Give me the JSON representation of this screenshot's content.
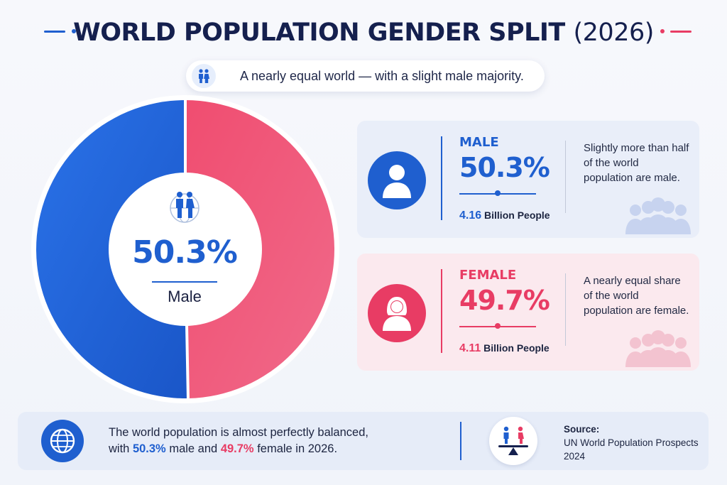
{
  "header": {
    "title": "WORLD POPULATION GENDER SPLIT",
    "year": "(2026)",
    "subtitle": "A nearly equal world — with a slight male majority."
  },
  "colors": {
    "male": "#1f5fcf",
    "female": "#e83c64",
    "navy": "#15204e"
  },
  "chart_data": {
    "type": "pie",
    "categories": [
      "Male",
      "Female"
    ],
    "values": [
      50.3,
      49.7
    ],
    "unit": "%",
    "center_value": "50.3%",
    "center_label": "Male",
    "colors": [
      "#1f5fcf",
      "#e83c64"
    ]
  },
  "cards": {
    "male": {
      "label": "MALE",
      "percent": "50.3%",
      "people_num": "4.16",
      "people_text": "Billion People",
      "description": "Slightly more than half of the world population are male."
    },
    "female": {
      "label": "FEMALE",
      "percent": "49.7%",
      "people_num": "4.11",
      "people_text": "Billion People",
      "description": "A nearly equal share of the world population are female."
    }
  },
  "footer": {
    "line1": "The world population is almost perfectly balanced,",
    "with": "with",
    "male_pct": "50.3%",
    "and_text": "male and",
    "female_pct": "49.7%",
    "end_text": "female in 2026.",
    "source_label": "Source:",
    "source_text": "UN World Population Prospects 2024"
  },
  "icons": {
    "subtitle": "people-pair-icon",
    "center": "people-globe-icon",
    "male_avatar": "male-person-icon",
    "female_avatar": "female-person-icon",
    "footer_globe": "globe-icon",
    "footer_scale": "balance-scale-icon"
  }
}
